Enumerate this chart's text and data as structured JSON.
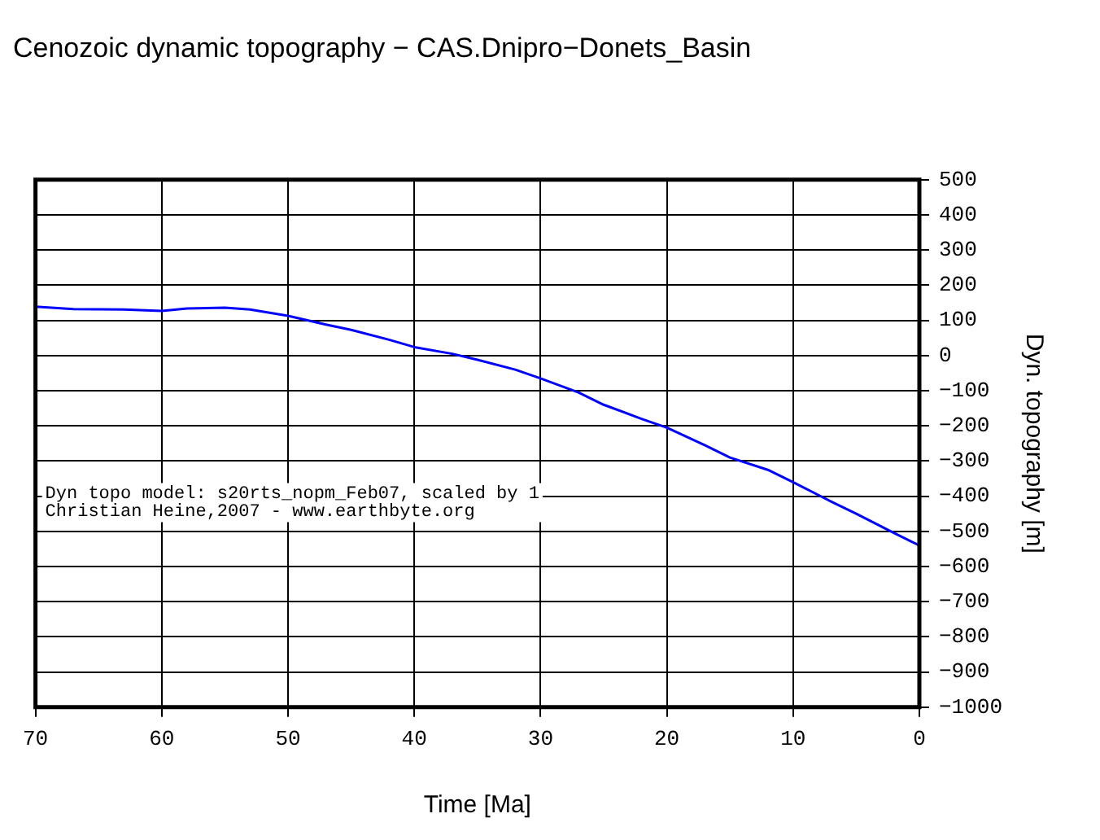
{
  "chart_data": {
    "type": "line",
    "title": "Cenozoic dynamic topography − CAS.Dnipro−Donets_Basin",
    "xlabel": "Time [Ma]",
    "ylabel": "Dyn. topography [m]",
    "x": [
      70,
      67,
      63,
      60,
      58,
      55,
      53,
      50,
      47,
      45,
      42,
      40,
      37,
      35,
      32,
      30,
      27,
      25,
      22,
      20,
      17,
      15,
      12,
      10,
      7,
      5,
      2,
      0
    ],
    "series": [
      {
        "color": "#0000ff",
        "values": [
          139,
          132,
          131,
          127,
          134,
          136,
          131,
          113,
          88,
          73,
          45,
          24,
          5,
          -12,
          -40,
          -65,
          -105,
          -140,
          -180,
          -205,
          -255,
          -290,
          -325,
          -360,
          -415,
          -450,
          -505,
          -540
        ]
      }
    ],
    "xlim": [
      70,
      0
    ],
    "xticks": [
      70,
      60,
      50,
      40,
      30,
      20,
      10,
      0
    ],
    "ylim": [
      -1000,
      500
    ],
    "yticks": [
      -1000,
      -900,
      -800,
      -700,
      -600,
      -500,
      -400,
      -300,
      -200,
      -100,
      0,
      100,
      200,
      300,
      400,
      500
    ],
    "grid": true,
    "marker": "none",
    "line_style": "solid",
    "annotations": [
      "Dyn topo model: s20rts_nopm_Feb07, scaled by 1",
      "Christian Heine,2007 - www.earthbyte.org"
    ]
  }
}
